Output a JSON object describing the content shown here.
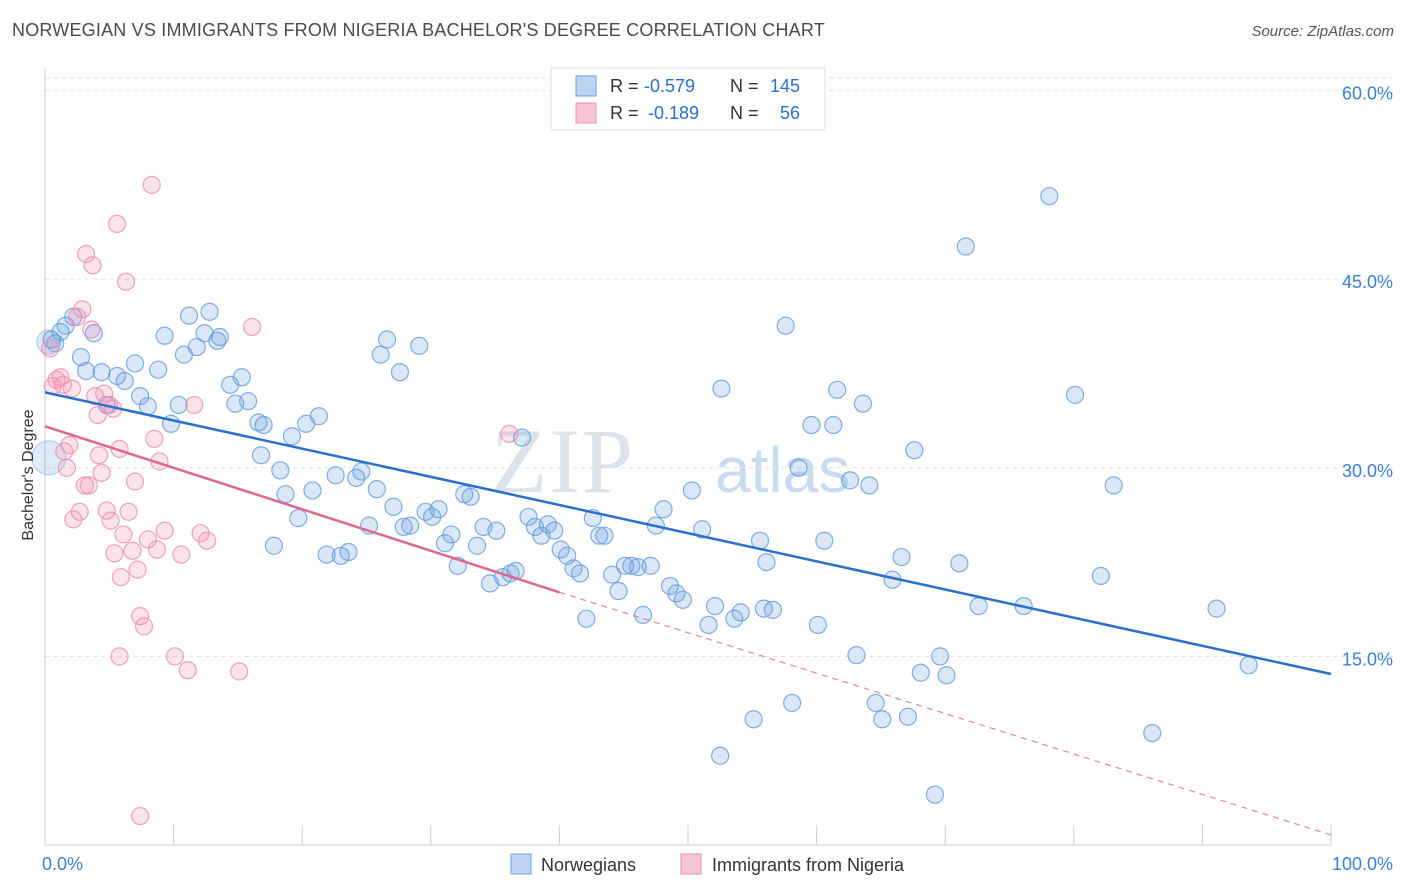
{
  "chart_data": {
    "type": "scatter",
    "title": "NORWEGIAN VS IMMIGRANTS FROM NIGERIA BACHELOR'S DEGREE CORRELATION CHART",
    "source": "Source: ZipAtlas.com",
    "xlabel": "",
    "ylabel": "Bachelor's Degree",
    "xlim": [
      0,
      100
    ],
    "ylim": [
      0,
      61
    ],
    "x_tick_labels": [
      "0.0%",
      "100.0%"
    ],
    "y_ticks": [
      15,
      30,
      45,
      60
    ],
    "y_tick_labels": [
      "15.0%",
      "30.0%",
      "45.0%",
      "60.0%"
    ],
    "watermark": {
      "zip": "ZIP",
      "atlas": "atlas"
    },
    "legend_stats": [
      {
        "r_label": "R =",
        "r_value": "-0.579",
        "n_label": "N =",
        "n_value": "145"
      },
      {
        "r_label": "R =",
        "r_value": "-0.189",
        "n_label": "N =",
        "n_value": "56"
      }
    ],
    "series": [
      {
        "name": "Norwegians",
        "color": "#6a9fe0",
        "line_color": "#2a6fcc",
        "r": -0.579,
        "n": 145,
        "trend": {
          "x": [
            0,
            100
          ],
          "y": [
            36.0,
            13.6
          ]
        },
        "points": [
          [
            0.5,
            40.2
          ],
          [
            0.8,
            39.9
          ],
          [
            1.2,
            40.8
          ],
          [
            1.6,
            41.3
          ],
          [
            2.2,
            42.0
          ],
          [
            2.8,
            38.8
          ],
          [
            3.2,
            37.7
          ],
          [
            3.8,
            40.7
          ],
          [
            4.4,
            37.6
          ],
          [
            4.8,
            35.0
          ],
          [
            5.6,
            37.3
          ],
          [
            6.2,
            36.9
          ],
          [
            7.0,
            38.3
          ],
          [
            7.4,
            35.7
          ],
          [
            8.0,
            34.9
          ],
          [
            8.8,
            37.8
          ],
          [
            9.3,
            40.5
          ],
          [
            9.8,
            33.5
          ],
          [
            10.4,
            35.0
          ],
          [
            10.8,
            39.0
          ],
          [
            11.2,
            42.1
          ],
          [
            11.8,
            39.6
          ],
          [
            12.4,
            40.7
          ],
          [
            12.8,
            42.4
          ],
          [
            13.4,
            40.1
          ],
          [
            13.6,
            40.4
          ],
          [
            14.4,
            36.6
          ],
          [
            14.8,
            35.1
          ],
          [
            15.3,
            37.2
          ],
          [
            15.8,
            35.3
          ],
          [
            16.6,
            33.6
          ],
          [
            16.8,
            31.0
          ],
          [
            17.0,
            33.4
          ],
          [
            17.8,
            23.8
          ],
          [
            18.3,
            29.8
          ],
          [
            18.7,
            27.9
          ],
          [
            19.2,
            32.5
          ],
          [
            19.7,
            26.0
          ],
          [
            20.3,
            33.5
          ],
          [
            20.8,
            28.2
          ],
          [
            21.3,
            34.1
          ],
          [
            21.9,
            23.1
          ],
          [
            22.6,
            29.4
          ],
          [
            23.0,
            23.0
          ],
          [
            23.6,
            23.3
          ],
          [
            24.2,
            29.2
          ],
          [
            24.6,
            29.7
          ],
          [
            25.2,
            25.4
          ],
          [
            25.8,
            28.3
          ],
          [
            26.1,
            39.0
          ],
          [
            26.6,
            40.2
          ],
          [
            27.1,
            26.9
          ],
          [
            27.6,
            37.6
          ],
          [
            27.9,
            25.3
          ],
          [
            28.4,
            25.4
          ],
          [
            29.1,
            39.7
          ],
          [
            29.6,
            26.5
          ],
          [
            30.1,
            26.1
          ],
          [
            30.6,
            26.7
          ],
          [
            31.1,
            24.0
          ],
          [
            31.6,
            24.7
          ],
          [
            32.1,
            22.2
          ],
          [
            32.6,
            27.9
          ],
          [
            33.1,
            27.7
          ],
          [
            33.6,
            23.8
          ],
          [
            34.1,
            25.3
          ],
          [
            34.6,
            20.8
          ],
          [
            35.1,
            25.0
          ],
          [
            35.6,
            21.3
          ],
          [
            36.2,
            21.6
          ],
          [
            36.6,
            21.8
          ],
          [
            37.1,
            32.4
          ],
          [
            37.6,
            26.1
          ],
          [
            38.1,
            25.3
          ],
          [
            38.6,
            24.6
          ],
          [
            39.1,
            25.5
          ],
          [
            39.6,
            25.0
          ],
          [
            40.1,
            23.5
          ],
          [
            40.6,
            23.0
          ],
          [
            41.1,
            22.0
          ],
          [
            41.6,
            21.6
          ],
          [
            42.1,
            18.0
          ],
          [
            42.6,
            26.0
          ],
          [
            43.1,
            24.6
          ],
          [
            43.5,
            24.6
          ],
          [
            44.1,
            21.5
          ],
          [
            44.6,
            20.2
          ],
          [
            45.1,
            22.2
          ],
          [
            45.6,
            22.2
          ],
          [
            46.1,
            22.1
          ],
          [
            46.5,
            18.3
          ],
          [
            47.1,
            22.2
          ],
          [
            47.5,
            25.4
          ],
          [
            48.1,
            26.7
          ],
          [
            48.6,
            20.6
          ],
          [
            49.1,
            20.0
          ],
          [
            49.6,
            19.5
          ],
          [
            50.3,
            28.2
          ],
          [
            51.1,
            25.1
          ],
          [
            51.6,
            17.5
          ],
          [
            52.1,
            19.0
          ],
          [
            52.6,
            36.3
          ],
          [
            53.6,
            18.0
          ],
          [
            54.1,
            18.5
          ],
          [
            55.1,
            10.0
          ],
          [
            55.6,
            24.2
          ],
          [
            55.9,
            18.8
          ],
          [
            56.1,
            22.5
          ],
          [
            56.6,
            18.7
          ],
          [
            57.6,
            41.3
          ],
          [
            58.1,
            11.3
          ],
          [
            58.6,
            30.0
          ],
          [
            59.6,
            33.4
          ],
          [
            60.1,
            17.5
          ],
          [
            60.6,
            24.2
          ],
          [
            61.3,
            33.4
          ],
          [
            61.6,
            36.2
          ],
          [
            62.6,
            29.0
          ],
          [
            63.1,
            15.1
          ],
          [
            63.6,
            35.1
          ],
          [
            64.1,
            28.6
          ],
          [
            64.6,
            11.3
          ],
          [
            65.1,
            10.0
          ],
          [
            65.9,
            21.1
          ],
          [
            66.6,
            22.9
          ],
          [
            67.1,
            10.2
          ],
          [
            67.6,
            31.4
          ],
          [
            68.1,
            13.7
          ],
          [
            69.6,
            15.0
          ],
          [
            70.1,
            13.5
          ],
          [
            71.1,
            22.4
          ],
          [
            71.6,
            47.6
          ],
          [
            72.6,
            19.0
          ],
          [
            76.1,
            19.0
          ],
          [
            78.1,
            51.6
          ],
          [
            80.1,
            35.8
          ],
          [
            82.1,
            21.4
          ],
          [
            83.1,
            28.6
          ],
          [
            86.1,
            8.9
          ],
          [
            91.1,
            18.8
          ],
          [
            93.6,
            14.3
          ],
          [
            52.5,
            7.1
          ],
          [
            69.2,
            4.0
          ]
        ]
      },
      {
        "name": "Immigrants from Nigeria",
        "color": "#ee90b0",
        "line_color": "#e06690",
        "r": -0.189,
        "n": 56,
        "trend": {
          "x": [
            0,
            40
          ],
          "y": [
            33.3,
            20.1
          ]
        },
        "trend_ext": {
          "x": [
            40,
            100
          ],
          "y": [
            20.1,
            0.8
          ]
        },
        "points": [
          [
            0.4,
            39.5
          ],
          [
            0.6,
            36.5
          ],
          [
            0.9,
            37.0
          ],
          [
            1.2,
            37.2
          ],
          [
            1.4,
            36.6
          ],
          [
            1.5,
            31.3
          ],
          [
            1.7,
            30.0
          ],
          [
            1.9,
            31.8
          ],
          [
            2.1,
            36.3
          ],
          [
            2.2,
            25.9
          ],
          [
            2.5,
            42.0
          ],
          [
            2.7,
            26.5
          ],
          [
            2.9,
            42.6
          ],
          [
            3.1,
            28.6
          ],
          [
            3.2,
            47.0
          ],
          [
            3.4,
            28.6
          ],
          [
            3.6,
            41.0
          ],
          [
            3.7,
            46.1
          ],
          [
            3.9,
            35.7
          ],
          [
            4.1,
            34.2
          ],
          [
            4.2,
            31.0
          ],
          [
            4.4,
            29.6
          ],
          [
            4.6,
            35.9
          ],
          [
            4.8,
            26.6
          ],
          [
            5.0,
            35.0
          ],
          [
            5.1,
            25.8
          ],
          [
            5.3,
            34.7
          ],
          [
            5.4,
            23.2
          ],
          [
            5.6,
            49.4
          ],
          [
            5.8,
            31.5
          ],
          [
            5.9,
            21.3
          ],
          [
            6.1,
            24.7
          ],
          [
            6.3,
            44.8
          ],
          [
            6.5,
            26.5
          ],
          [
            6.8,
            23.4
          ],
          [
            7.0,
            28.9
          ],
          [
            7.2,
            21.9
          ],
          [
            7.4,
            18.2
          ],
          [
            7.7,
            17.4
          ],
          [
            8.0,
            24.3
          ],
          [
            8.3,
            52.5
          ],
          [
            8.5,
            32.3
          ],
          [
            8.7,
            23.5
          ],
          [
            8.9,
            30.5
          ],
          [
            9.3,
            25.0
          ],
          [
            10.1,
            15.0
          ],
          [
            10.6,
            23.1
          ],
          [
            11.1,
            13.9
          ],
          [
            11.6,
            35.0
          ],
          [
            12.1,
            24.8
          ],
          [
            12.6,
            24.2
          ],
          [
            15.1,
            13.8
          ],
          [
            16.1,
            41.2
          ],
          [
            36.1,
            32.7
          ],
          [
            7.4,
            2.3
          ],
          [
            5.8,
            15.0
          ]
        ]
      }
    ]
  }
}
